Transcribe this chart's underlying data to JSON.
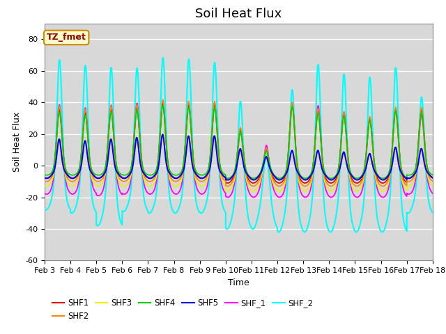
{
  "title": "Soil Heat Flux",
  "xlabel": "Time",
  "ylabel": "Soil Heat Flux",
  "ylim": [
    -60,
    90
  ],
  "yticks": [
    -60,
    -40,
    -20,
    0,
    20,
    40,
    60,
    80
  ],
  "xtick_labels": [
    "Feb 3",
    "Feb 4",
    "Feb 5",
    "Feb 6",
    "Feb 7",
    "Feb 8",
    "Feb 9",
    "Feb 10",
    "Feb 11",
    "Feb 12",
    "Feb 13",
    "Feb 14",
    "Feb 15",
    "Feb 16",
    "Feb 17",
    "Feb 18"
  ],
  "series_order": [
    "SHF_2",
    "SHF_1",
    "SHF3",
    "SHF1",
    "SHF2",
    "SHF4",
    "SHF5"
  ],
  "series": {
    "SHF1": {
      "color": "#dd0000",
      "lw": 1.2,
      "zorder": 5
    },
    "SHF2": {
      "color": "#ff8800",
      "lw": 1.2,
      "zorder": 5
    },
    "SHF3": {
      "color": "#eeee00",
      "lw": 1.2,
      "zorder": 4
    },
    "SHF4": {
      "color": "#00cc00",
      "lw": 1.2,
      "zorder": 5
    },
    "SHF5": {
      "color": "#0000dd",
      "lw": 1.5,
      "zorder": 6
    },
    "SHF_1": {
      "color": "#ff00ff",
      "lw": 1.3,
      "zorder": 4
    },
    "SHF_2": {
      "color": "#00ffff",
      "lw": 1.5,
      "zorder": 3
    }
  },
  "annotation_text": "TZ_fmet",
  "plot_bg": "#d8d8d8",
  "grid_color": "white",
  "title_fontsize": 13,
  "label_fontsize": 9,
  "tick_fontsize": 8
}
